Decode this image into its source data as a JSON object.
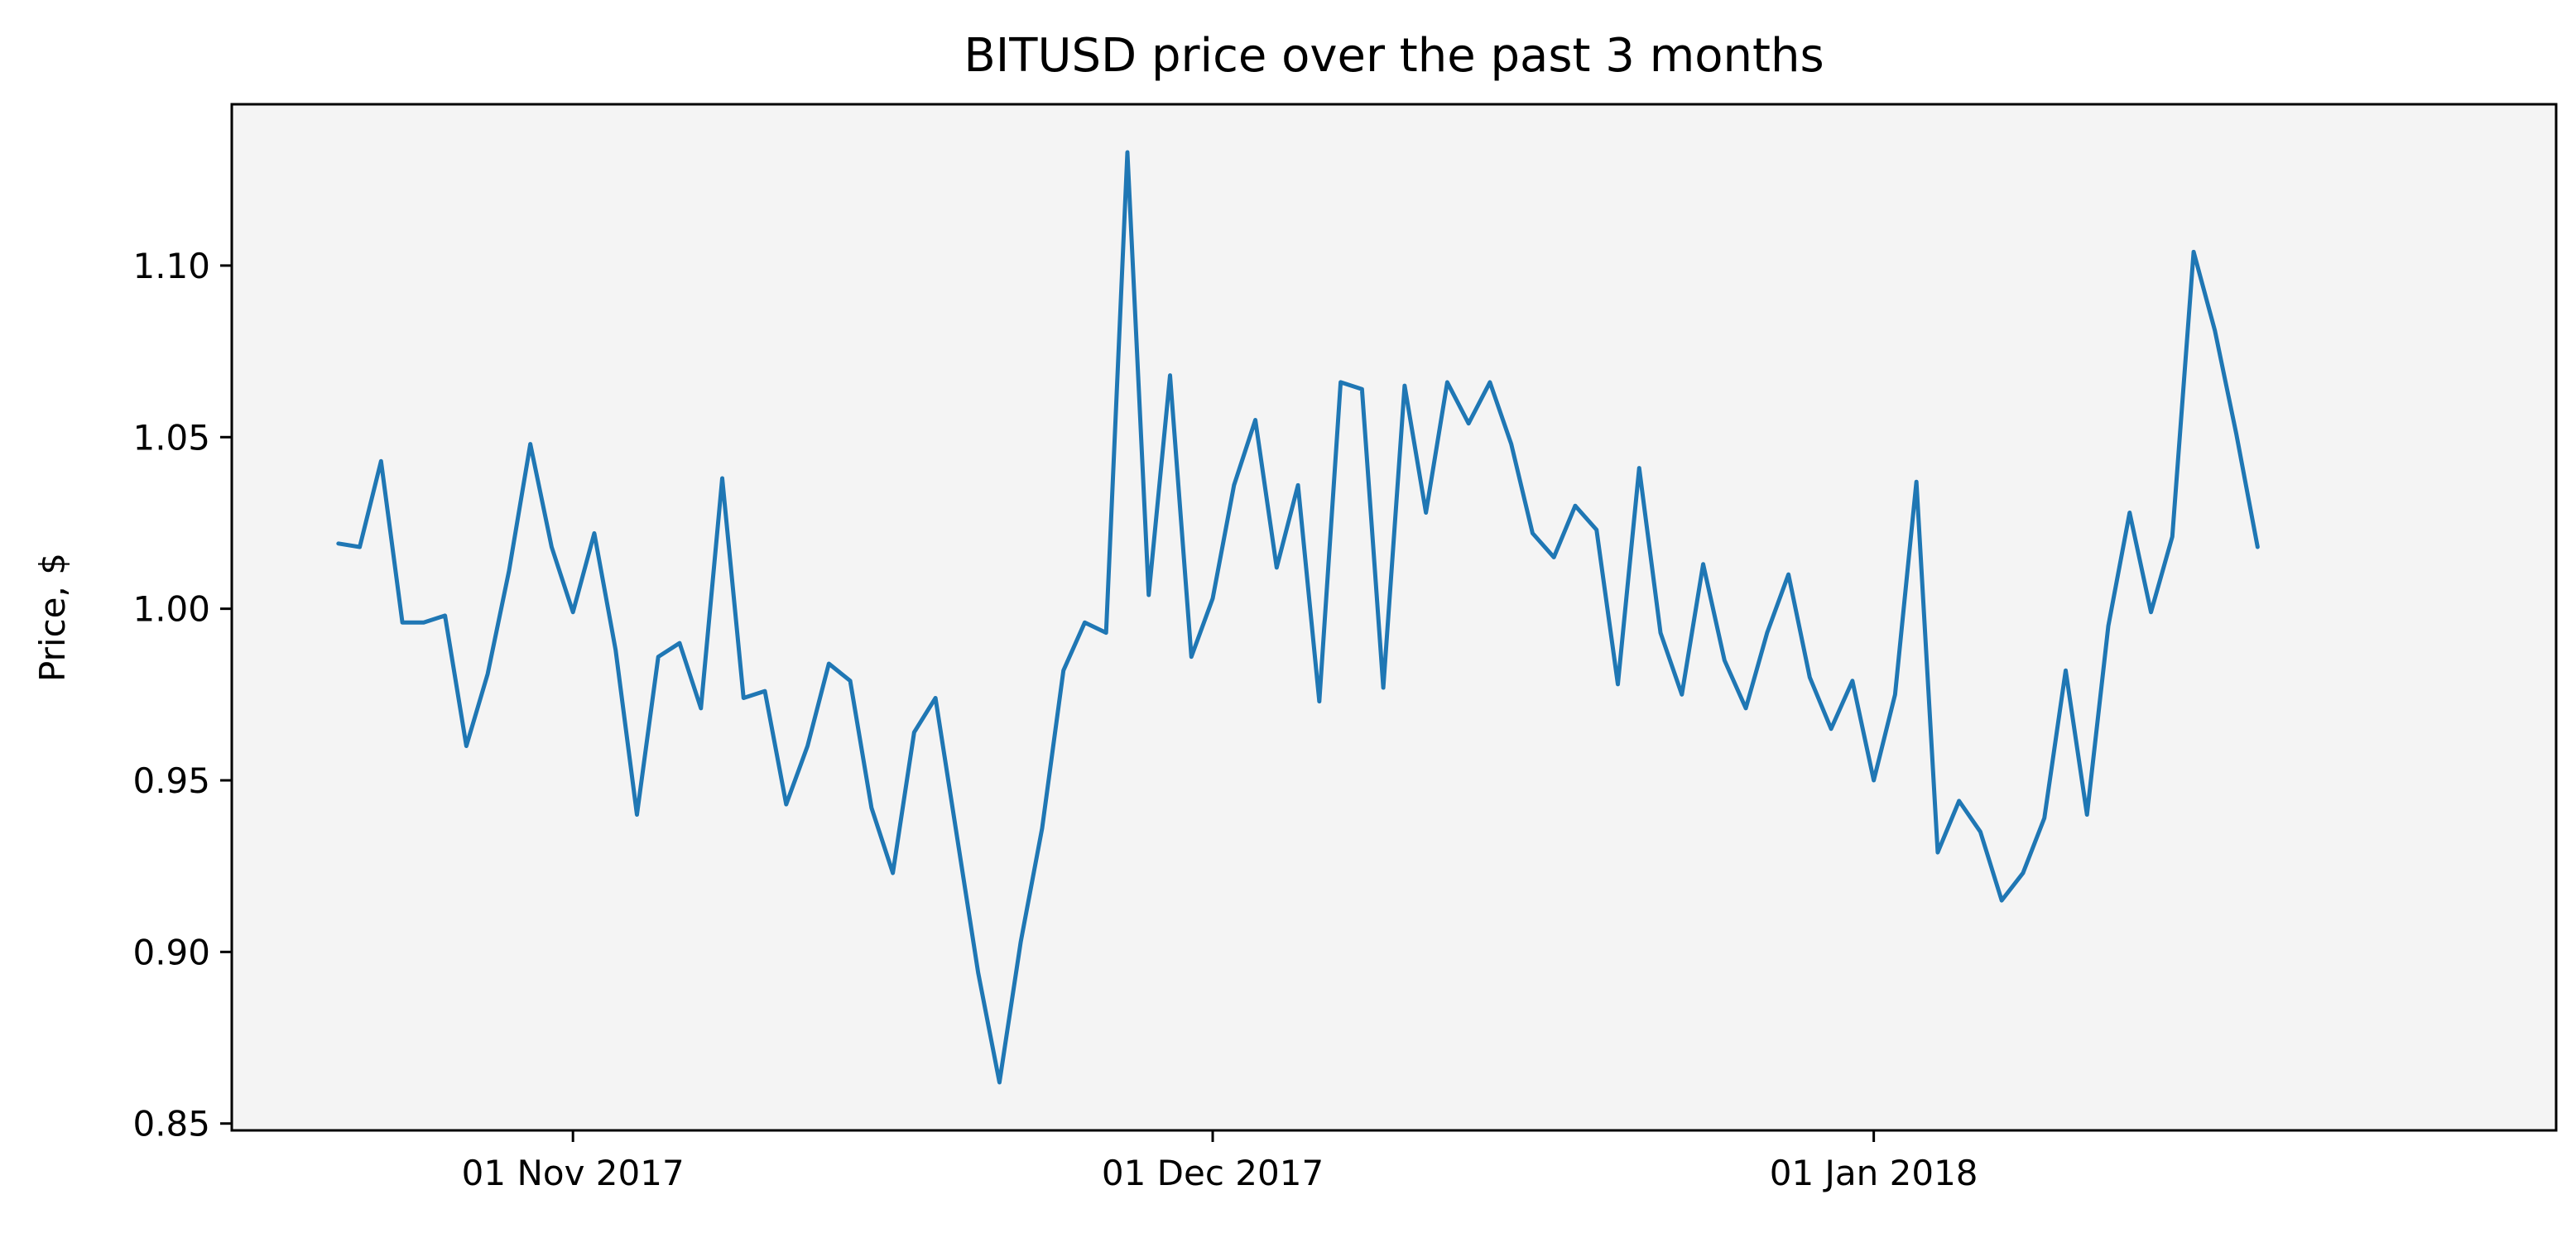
{
  "chart_data": {
    "type": "line",
    "title": "BITUSD price over the past 3 months",
    "xlabel": "",
    "ylabel": "Price, $",
    "x_start": "2017-10-21",
    "x_step_days": 1,
    "xlim": [
      "2017-10-16",
      "2018-02-02"
    ],
    "ylim": [
      0.848,
      1.147
    ],
    "x_ticks": [
      {
        "date": "2017-11-01",
        "label": "01 Nov 2017"
      },
      {
        "date": "2017-12-01",
        "label": "01 Dec 2017"
      },
      {
        "date": "2018-01-01",
        "label": "01 Jan 2018"
      }
    ],
    "y_ticks": [
      {
        "value": 0.85,
        "label": "0.85"
      },
      {
        "value": 0.9,
        "label": "0.90"
      },
      {
        "value": 0.95,
        "label": "0.95"
      },
      {
        "value": 1.0,
        "label": "1.00"
      },
      {
        "value": 1.05,
        "label": "1.05"
      },
      {
        "value": 1.1,
        "label": "1.10"
      }
    ],
    "grid": false,
    "colors": {
      "line": "#1f77b4",
      "plot_background": "#f4f4f4",
      "axes": "#000000"
    },
    "series": [
      {
        "values": [
          1.019,
          1.018,
          1.043,
          0.996,
          0.996,
          0.998,
          0.96,
          0.981,
          1.011,
          1.048,
          1.018,
          0.999,
          1.022,
          0.988,
          0.94,
          0.986,
          0.99,
          0.971,
          1.038,
          0.974,
          0.976,
          0.943,
          0.96,
          0.984,
          0.979,
          0.942,
          0.923,
          0.964,
          0.974,
          0.934,
          0.894,
          0.862,
          0.903,
          0.936,
          0.982,
          0.996,
          0.993,
          1.133,
          1.004,
          1.068,
          0.986,
          1.003,
          1.036,
          1.055,
          1.012,
          1.036,
          0.973,
          1.066,
          1.064,
          0.977,
          1.065,
          1.028,
          1.066,
          1.054,
          1.066,
          1.048,
          1.022,
          1.015,
          1.03,
          1.023,
          0.978,
          1.041,
          0.993,
          0.975,
          1.013,
          0.985,
          0.971,
          0.993,
          1.01,
          0.98,
          0.965,
          0.979,
          0.95,
          0.975,
          1.037,
          0.929,
          0.944,
          0.935,
          0.915,
          0.923,
          0.939,
          0.982,
          0.94,
          0.995,
          1.028,
          0.999,
          1.021,
          1.104,
          1.081,
          1.051,
          1.018
        ]
      }
    ]
  }
}
